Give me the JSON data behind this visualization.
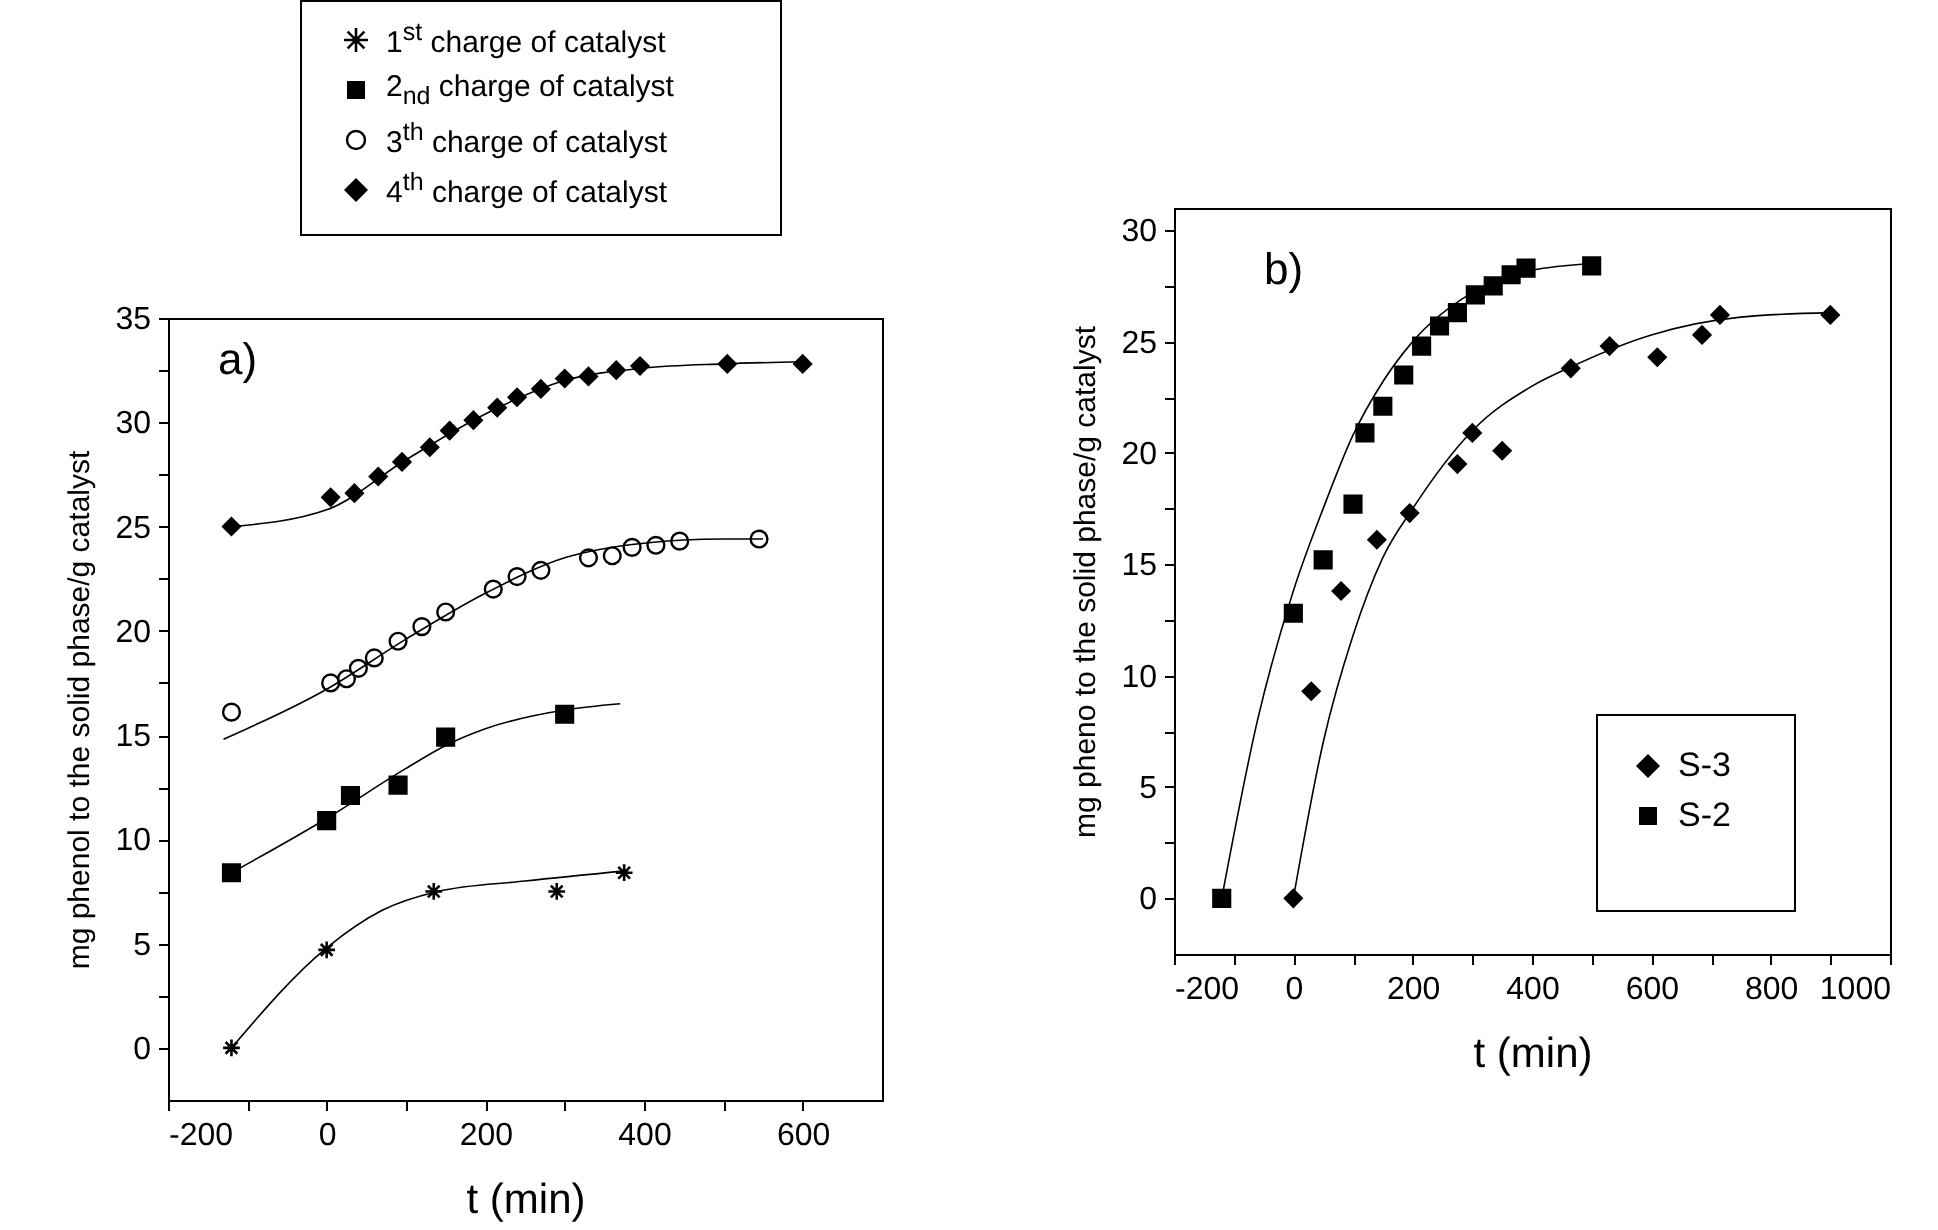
{
  "chart_data": [
    {
      "type": "scatter",
      "xlabel": "t (min)",
      "ylabel": "mg phenol to the solid phase/g catalyst",
      "annotations": [
        "a)"
      ],
      "legend": "top",
      "grid": false,
      "xlim": [
        -200,
        700
      ],
      "xticks": [
        -200,
        {
          "value": -100,
          "label": null
        },
        0,
        {
          "value": 100,
          "label": null
        },
        200,
        {
          "value": 300,
          "label": null
        },
        400,
        {
          "value": 500,
          "label": null
        },
        600
      ],
      "ylim": [
        -2.5,
        35
      ],
      "yticks": [
        0,
        {
          "value": 2.5,
          "label": null
        },
        5,
        {
          "value": 7.5,
          "label": null
        },
        10,
        {
          "value": 12.5,
          "label": null
        },
        15,
        {
          "value": 17.5,
          "label": null
        },
        20,
        {
          "value": 22.5,
          "label": null
        },
        25,
        {
          "value": 27.5,
          "label": null
        },
        30,
        {
          "value": 32.5,
          "label": null
        },
        35
      ],
      "series": [
        {
          "name": "1$^{st}$ charge of catalyst",
          "color": "#000000",
          "marker": "cross",
          "x": [
            -120,
            0,
            135,
            290,
            375
          ],
          "values": [
            0,
            4.7,
            7.5,
            7.5,
            8.4
          ]
        },
        {
          "name": "2$_{nd}$ charge of catalyst",
          "color": "#000000",
          "marker": "square",
          "x": [
            -120,
            0,
            30,
            90,
            150,
            300
          ],
          "values": [
            8.4,
            10.9,
            12.1,
            12.6,
            14.9,
            16.0
          ]
        },
        {
          "name": "3$^{th}$ charge of catalyst",
          "color": "#000000",
          "marker": "circle",
          "x": [
            -120,
            5,
            25,
            40,
            60,
            90,
            120,
            150,
            210,
            240,
            270,
            330,
            360,
            385,
            415,
            445,
            545
          ],
          "values": [
            16.1,
            17.5,
            17.7,
            18.2,
            18.7,
            19.5,
            20.2,
            20.9,
            22.0,
            22.6,
            22.9,
            23.5,
            23.6,
            24.0,
            24.1,
            24.3,
            24.4
          ]
        },
        {
          "name": "4$^{th}$ charge of catalyst",
          "color": "#000000",
          "marker": "diamond",
          "x": [
            -120,
            5,
            35,
            65,
            95,
            130,
            155,
            185,
            215,
            240,
            270,
            300,
            330,
            365,
            395,
            505,
            600
          ],
          "values": [
            25.0,
            26.4,
            26.6,
            27.4,
            28.1,
            28.8,
            29.6,
            30.1,
            30.7,
            31.2,
            31.6,
            32.1,
            32.2,
            32.5,
            32.7,
            32.8,
            32.8
          ]
        },
        {
          "type": "line",
          "color": "#000000",
          "marker": "none",
          "x": [
            -120,
            0,
            70,
            140,
            250,
            380
          ],
          "values": [
            0,
            4.8,
            6.6,
            7.5,
            8.0,
            8.5
          ]
        },
        {
          "type": "line",
          "color": "#000000",
          "marker": "none",
          "x": [
            -120,
            0,
            100,
            150,
            200,
            300,
            370
          ],
          "values": [
            8.4,
            11.0,
            13.4,
            14.5,
            15.3,
            16.2,
            16.5
          ]
        },
        {
          "type": "line",
          "color": "#000000",
          "marker": "none",
          "x": [
            -130,
            0,
            100,
            200,
            300,
            400,
            500,
            550
          ],
          "values": [
            14.8,
            17.2,
            19.6,
            21.8,
            23.5,
            24.2,
            24.4,
            24.4
          ]
        },
        {
          "type": "line",
          "color": "#000000",
          "marker": "none",
          "x": [
            -120,
            0,
            100,
            200,
            300,
            400,
            500,
            600
          ],
          "values": [
            25.0,
            25.8,
            28.2,
            30.4,
            32.0,
            32.6,
            32.8,
            32.9
          ]
        }
      ]
    },
    {
      "type": "scatter",
      "xlabel": "t (min)",
      "ylabel": "mg pheno to the solid phase/g catalyst",
      "annotations": [
        "b)"
      ],
      "legend": "bottom right",
      "grid": false,
      "xlim": [
        -200,
        1000
      ],
      "xticks": [
        -200,
        {
          "value": -100,
          "label": null
        },
        0,
        {
          "value": 100,
          "label": null
        },
        200,
        {
          "value": 300,
          "label": null
        },
        400,
        {
          "value": 500,
          "label": null
        },
        600,
        {
          "value": 700,
          "label": null
        },
        800,
        {
          "value": 900,
          "label": null
        },
        1000
      ],
      "ylim": [
        -2.5,
        31
      ],
      "yticks": [
        0,
        {
          "value": 2.5,
          "label": null
        },
        5,
        {
          "value": 7.5,
          "label": null
        },
        10,
        {
          "value": 12.5,
          "label": null
        },
        15,
        {
          "value": 17.5,
          "label": null
        },
        20,
        {
          "value": 22.5,
          "label": null
        },
        25,
        {
          "value": 27.5,
          "label": null
        },
        30
      ],
      "series": [
        {
          "name": "S-3",
          "color": "#000000",
          "marker": "diamond",
          "x": [
            0,
            30,
            80,
            140,
            195,
            275,
            300,
            350,
            465,
            530,
            610,
            685,
            715,
            900
          ],
          "values": [
            0,
            9.3,
            13.8,
            16.1,
            17.3,
            19.5,
            20.9,
            20.1,
            23.8,
            24.8,
            24.3,
            25.3,
            26.2,
            26.2
          ]
        },
        {
          "name": "S-2",
          "color": "#000000",
          "marker": "square",
          "x": [
            -120,
            0,
            50,
            100,
            120,
            150,
            185,
            215,
            245,
            275,
            305,
            335,
            365,
            390,
            500
          ],
          "values": [
            0,
            12.8,
            15.2,
            17.7,
            20.9,
            22.1,
            23.5,
            24.8,
            25.7,
            26.3,
            27.1,
            27.5,
            28.0,
            28.3,
            28.4
          ]
        },
        {
          "type": "line",
          "color": "#000000",
          "marker": "none",
          "x": [
            -120,
            -60,
            0,
            50,
            100,
            150,
            200,
            300,
            400,
            500
          ],
          "values": [
            0,
            8,
            13.8,
            17.5,
            20.8,
            23.2,
            25,
            27.2,
            28.2,
            28.5
          ]
        },
        {
          "type": "line",
          "color": "#000000",
          "marker": "none",
          "x": [
            0,
            50,
            100,
            150,
            200,
            300,
            400,
            460,
            600,
            750,
            900
          ],
          "values": [
            0,
            7,
            11.8,
            15.3,
            17.5,
            21,
            23,
            23.8,
            25.3,
            26.1,
            26.3
          ]
        }
      ]
    }
  ]
}
